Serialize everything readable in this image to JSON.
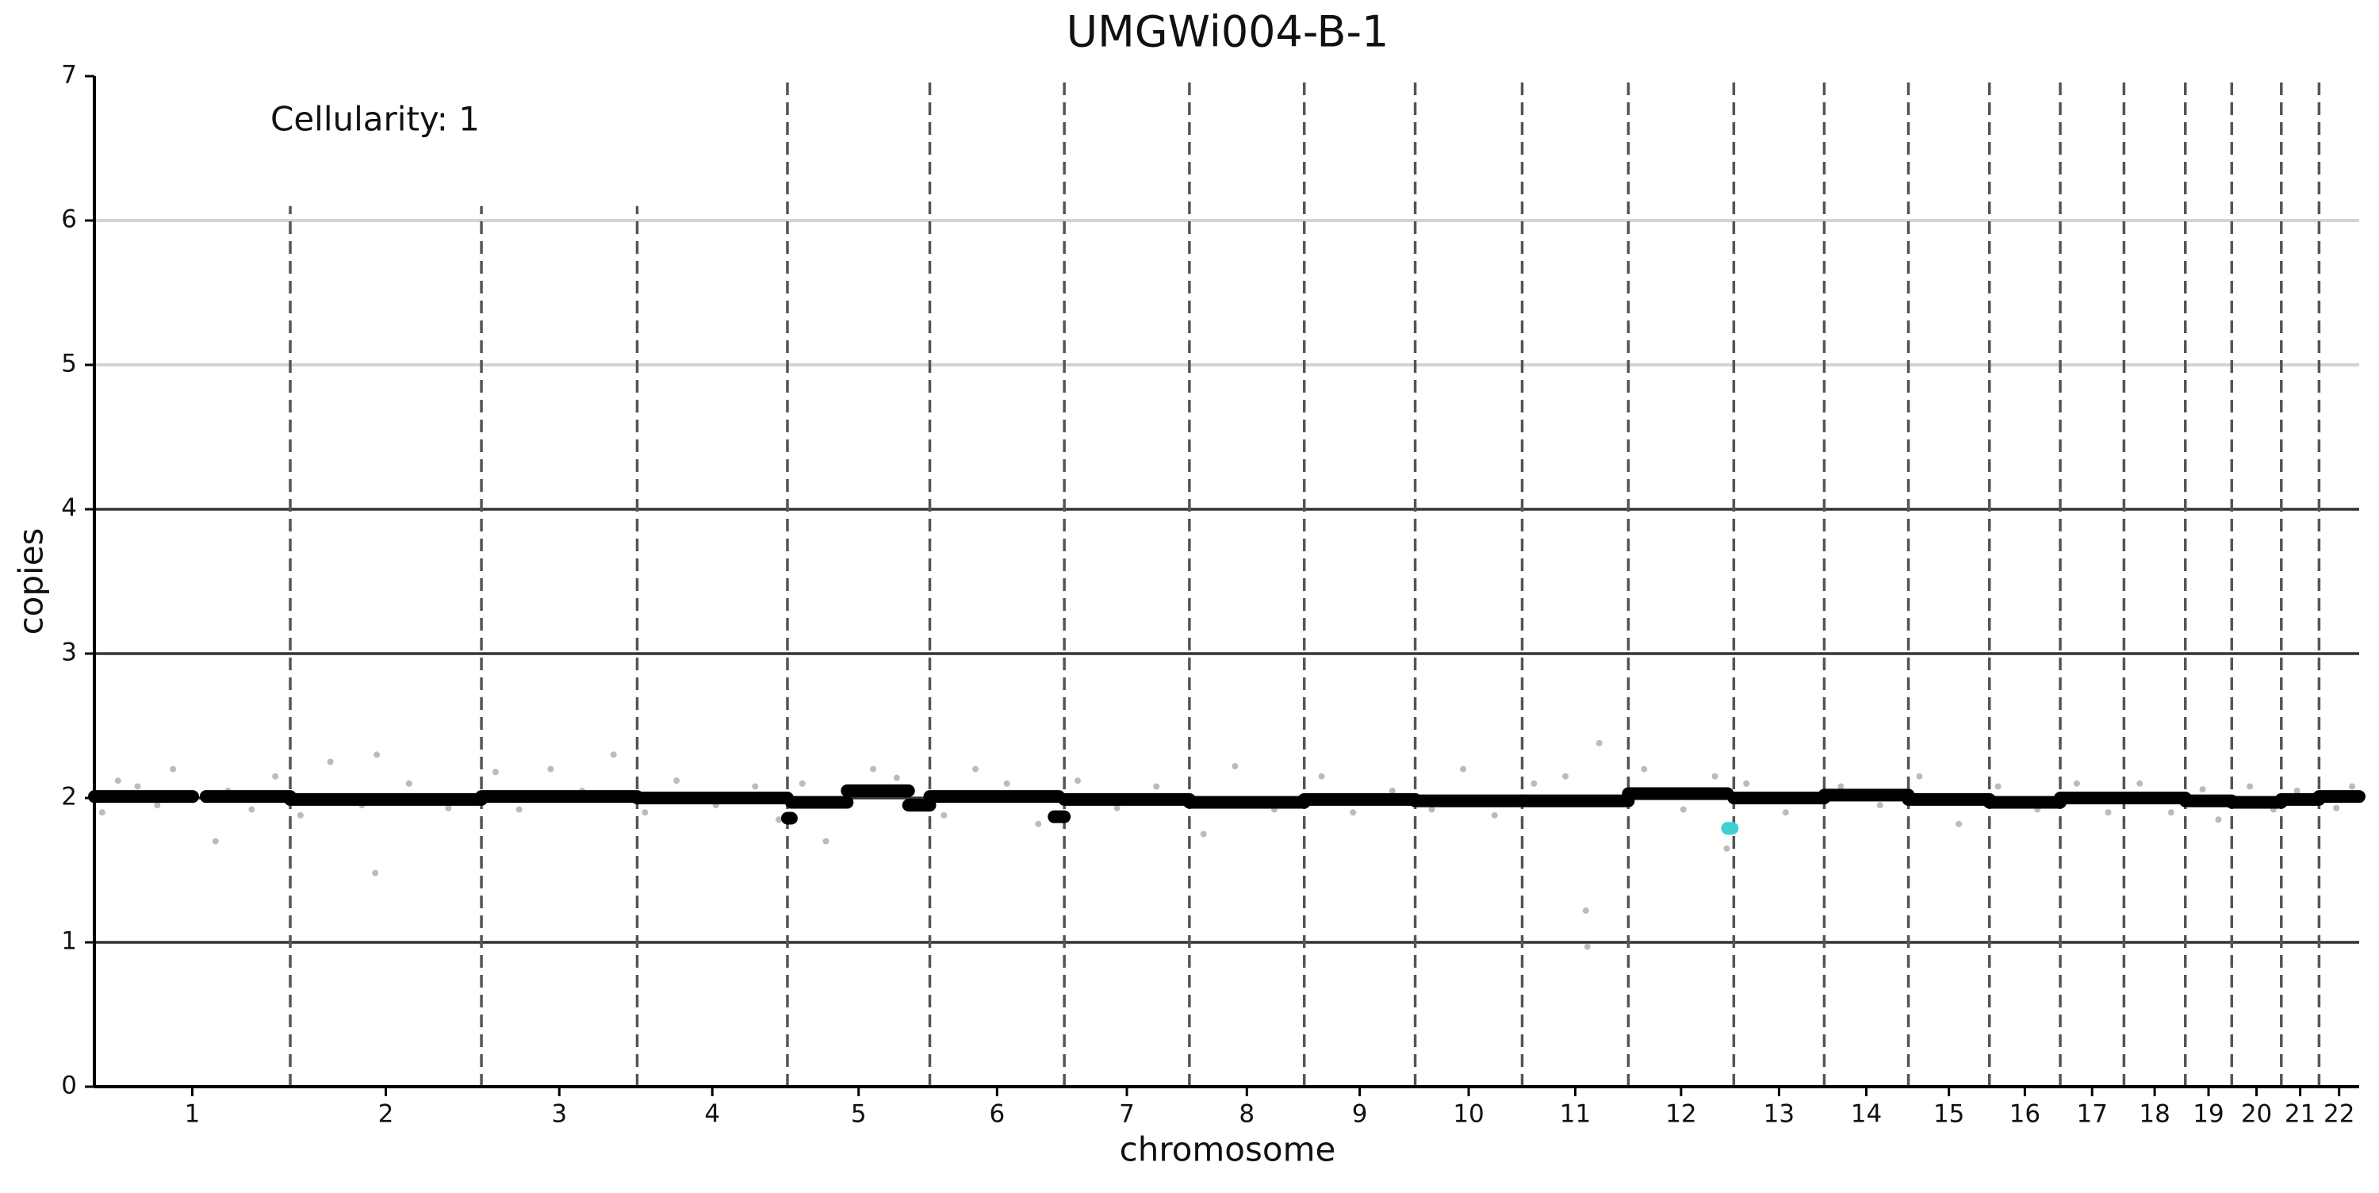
{
  "chart_data": {
    "type": "copy-number",
    "title": "UMGWi004-B-1",
    "annotation": "Cellularity: 1",
    "x_label": "chromosome",
    "y_label": "copies",
    "ylim": [
      0,
      7
    ],
    "yticks": [
      0,
      1,
      2,
      3,
      4,
      5,
      6,
      7
    ],
    "xlim": [
      0,
      2879
    ],
    "chromosomes": [
      "1",
      "2",
      "3",
      "4",
      "5",
      "6",
      "7",
      "8",
      "9",
      "10",
      "11",
      "12",
      "13",
      "14",
      "15",
      "16",
      "17",
      "18",
      "19",
      "20",
      "21",
      "22"
    ],
    "boundaries": [
      0,
      249,
      492,
      690,
      881,
      1062,
      1233,
      1392,
      1538,
      1679,
      1815,
      1950,
      2084,
      2199,
      2306,
      2409,
      2499,
      2580,
      2658,
      2717,
      2780,
      2828,
      2879
    ],
    "boundary_tops": [
      6.1,
      6.1,
      6.1,
      7,
      7,
      7,
      7,
      7,
      7,
      7,
      7,
      7,
      7,
      7,
      7,
      7,
      7,
      7,
      7,
      7,
      7
    ],
    "dark_lines": [
      1,
      2,
      3,
      4
    ],
    "light_lines": [
      5,
      6
    ],
    "segments": {
      "x0": [
        0,
        142,
        249,
        492,
        690,
        881,
        886,
        957,
        1035,
        1062,
        1220,
        1233,
        1392,
        1538,
        1679,
        1815,
        1950,
        2076,
        2084,
        2199,
        2306,
        2409,
        2499,
        2580,
        2658,
        2717,
        2780,
        2828
      ],
      "x1": [
        125,
        249,
        492,
        690,
        881,
        886,
        957,
        1035,
        1062,
        1226,
        1233,
        1392,
        1538,
        1679,
        1815,
        1950,
        2076,
        2082,
        2199,
        2306,
        2409,
        2499,
        2580,
        2658,
        2717,
        2780,
        2828,
        2879
      ],
      "y": [
        2.01,
        2.01,
        1.99,
        2.01,
        2.0,
        1.86,
        1.97,
        2.05,
        1.95,
        2.01,
        1.87,
        1.99,
        1.97,
        1.99,
        1.98,
        1.98,
        2.03,
        1.79,
        2.0,
        2.02,
        1.99,
        1.97,
        2.0,
        2.0,
        1.98,
        1.97,
        1.99,
        2.01
      ],
      "colors": [
        "#000000",
        "#000000",
        "#000000",
        "#000000",
        "#000000",
        "#000000",
        "#000000",
        "#000000",
        "#000000",
        "#000000",
        "#000000",
        "#000000",
        "#000000",
        "#000000",
        "#000000",
        "#000000",
        "#000000",
        "#40d0d0",
        "#000000",
        "#000000",
        "#000000",
        "#000000",
        "#000000",
        "#000000",
        "#000000",
        "#000000",
        "#000000",
        "#000000"
      ]
    },
    "points": {
      "color": "#bbbbbb",
      "x": [
        10,
        30,
        55,
        80,
        100,
        154,
        170,
        200,
        230,
        262,
        300,
        340,
        357,
        359,
        400,
        450,
        510,
        540,
        580,
        620,
        660,
        700,
        740,
        790,
        840,
        870,
        900,
        930,
        990,
        1020,
        1080,
        1120,
        1160,
        1200,
        1250,
        1300,
        1350,
        1410,
        1450,
        1500,
        1560,
        1600,
        1650,
        1700,
        1740,
        1780,
        1830,
        1870,
        1896,
        1898,
        1913,
        1970,
        2020,
        2060,
        2075,
        2100,
        2150,
        2220,
        2270,
        2320,
        2370,
        2420,
        2470,
        2520,
        2560,
        2600,
        2640,
        2680,
        2700,
        2740,
        2770,
        2800,
        2850,
        2870
      ],
      "y": [
        1.9,
        2.12,
        2.08,
        1.95,
        2.2,
        1.7,
        2.05,
        1.92,
        2.15,
        1.88,
        2.25,
        1.95,
        1.48,
        2.3,
        2.1,
        1.93,
        2.18,
        1.92,
        2.2,
        2.05,
        2.3,
        1.9,
        2.12,
        1.95,
        2.08,
        1.85,
        2.1,
        1.7,
        2.2,
        2.14,
        1.88,
        2.2,
        2.1,
        1.82,
        2.12,
        1.93,
        2.08,
        1.75,
        2.22,
        1.92,
        2.15,
        1.9,
        2.05,
        1.92,
        2.2,
        1.88,
        2.1,
        2.15,
        1.22,
        0.97,
        2.38,
        2.2,
        1.92,
        2.15,
        1.65,
        2.1,
        1.9,
        2.08,
        1.95,
        2.15,
        1.82,
        2.08,
        1.92,
        2.1,
        1.9,
        2.1,
        1.9,
        2.06,
        1.85,
        2.08,
        1.92,
        2.05,
        1.93,
        2.08
      ]
    }
  }
}
